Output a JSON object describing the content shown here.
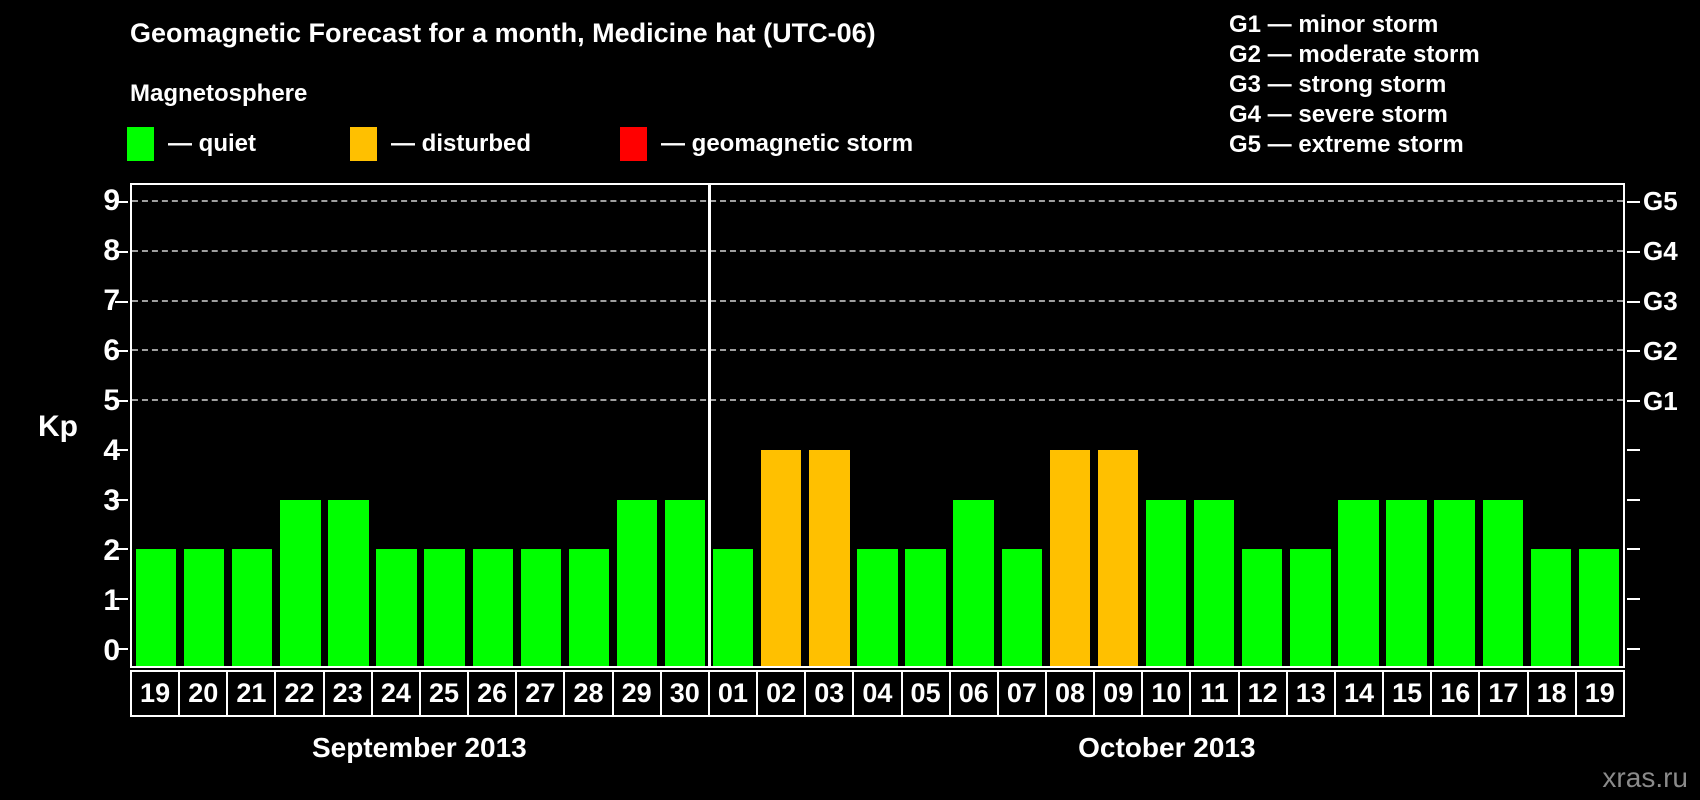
{
  "title": "Geomagnetic Forecast for a month, Medicine hat (UTC-06)",
  "subtitle": "Magnetosphere",
  "watermark": "xras.ru",
  "colors": {
    "background": "#000000",
    "text": "#ffffff",
    "grid": "#9f9f9f",
    "watermark": "#8a8a8a",
    "quiet": "#00ff00",
    "disturbed": "#ffc000",
    "storm": "#ff0000"
  },
  "legend": {
    "items": [
      {
        "status": "quiet",
        "label": "— quiet",
        "color": "#00ff00"
      },
      {
        "status": "disturbed",
        "label": "— disturbed",
        "color": "#ffc000"
      },
      {
        "status": "storm",
        "label": "— geomagnetic storm",
        "color": "#ff0000"
      }
    ]
  },
  "g_legend": [
    "G1 — minor storm",
    "G2 — moderate storm",
    "G3 — strong storm",
    "G4 — severe storm",
    "G5 — extreme storm"
  ],
  "chart_data": {
    "type": "bar",
    "title": "Geomagnetic Forecast for a month, Medicine hat (UTC-06)",
    "ylabel": "Kp",
    "ylim": [
      -0.35,
      9.35
    ],
    "yticks": [
      0,
      1,
      2,
      3,
      4,
      5,
      6,
      7,
      8,
      9
    ],
    "gridlines_at": [
      5,
      6,
      7,
      8,
      9
    ],
    "grid_style": "dashed horizontal lines at Kp 5-9 only",
    "legend_position": "top-left",
    "right_axis": [
      {
        "value": 5,
        "label": "G1"
      },
      {
        "value": 6,
        "label": "G2"
      },
      {
        "value": 7,
        "label": "G3"
      },
      {
        "value": 8,
        "label": "G4"
      },
      {
        "value": 9,
        "label": "G5"
      }
    ],
    "months": [
      {
        "label": "September 2013",
        "days": [
          "19",
          "20",
          "21",
          "22",
          "23",
          "24",
          "25",
          "26",
          "27",
          "28",
          "29",
          "30"
        ]
      },
      {
        "label": "October 2013",
        "days": [
          "01",
          "02",
          "03",
          "04",
          "05",
          "06",
          "07",
          "08",
          "09",
          "10",
          "11",
          "12",
          "13",
          "14",
          "15",
          "16",
          "17",
          "18",
          "19"
        ]
      }
    ],
    "categories": [
      "19",
      "20",
      "21",
      "22",
      "23",
      "24",
      "25",
      "26",
      "27",
      "28",
      "29",
      "30",
      "01",
      "02",
      "03",
      "04",
      "05",
      "06",
      "07",
      "08",
      "09",
      "10",
      "11",
      "12",
      "13",
      "14",
      "15",
      "16",
      "17",
      "18",
      "19"
    ],
    "values": [
      2,
      2,
      2,
      3,
      3,
      2,
      2,
      2,
      2,
      2,
      3,
      3,
      2,
      4,
      4,
      2,
      2,
      3,
      2,
      4,
      4,
      3,
      3,
      2,
      2,
      3,
      3,
      3,
      3,
      2,
      2
    ],
    "statuses": [
      "quiet",
      "quiet",
      "quiet",
      "quiet",
      "quiet",
      "quiet",
      "quiet",
      "quiet",
      "quiet",
      "quiet",
      "quiet",
      "quiet",
      "quiet",
      "disturbed",
      "disturbed",
      "quiet",
      "quiet",
      "quiet",
      "quiet",
      "disturbed",
      "disturbed",
      "quiet",
      "quiet",
      "quiet",
      "quiet",
      "quiet",
      "quiet",
      "quiet",
      "quiet",
      "quiet",
      "quiet"
    ]
  }
}
